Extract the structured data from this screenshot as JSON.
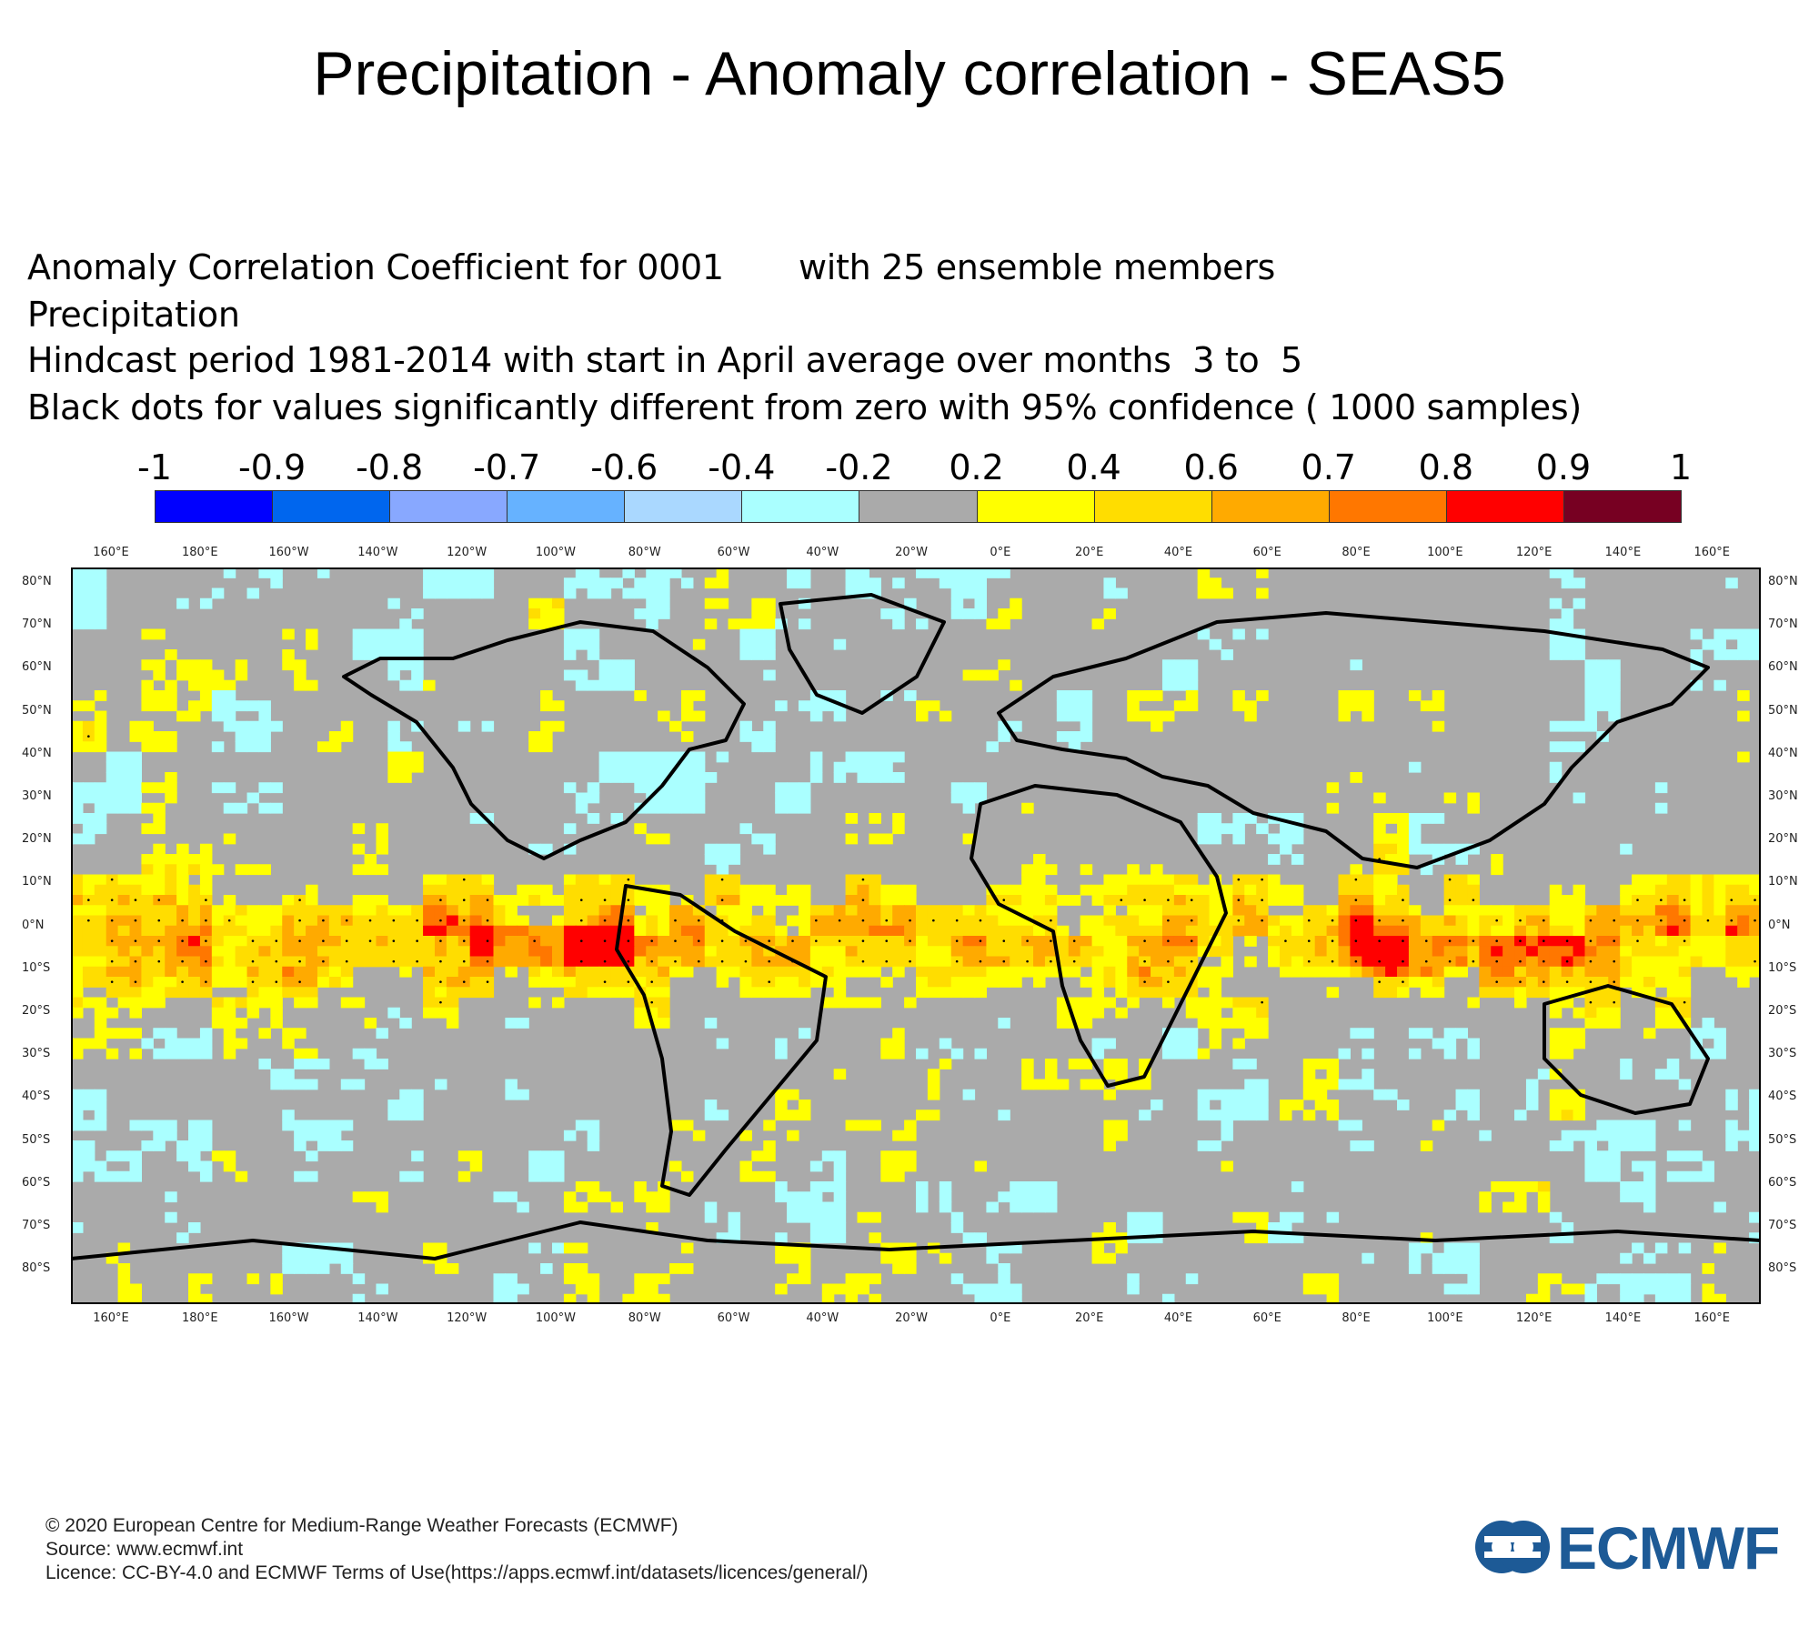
{
  "title": "Precipitation - Anomaly correlation - SEAS5",
  "subtitle": {
    "line1a": "Anomaly Correlation Coefficient for 0001",
    "line1b": "with 25 ensemble members",
    "line2": "Precipitation",
    "line3": "Hindcast period 1981-2014 with start in April average over months  3 to  5",
    "line4": "Black dots for values significantly different from zero with 95% confidence ( 1000 samples)"
  },
  "colorbar": {
    "labels": [
      "-1",
      "-0.9",
      "-0.8",
      "-0.7",
      "-0.6",
      "-0.4",
      "-0.2",
      "0.2",
      "0.4",
      "0.6",
      "0.7",
      "0.8",
      "0.9",
      "1"
    ],
    "colors": [
      "#0000ff",
      "#0066ee",
      "#88a8ff",
      "#66b2ff",
      "#aad8ff",
      "#aaffff",
      "#aaaaaa",
      "#ffff00",
      "#ffdd00",
      "#ffaa00",
      "#ff7700",
      "#ff0000",
      "#770022"
    ]
  },
  "map": {
    "lon_labels": [
      "160°E",
      "180°E",
      "160°W",
      "140°W",
      "120°W",
      "100°W",
      "80°W",
      "60°W",
      "40°W",
      "20°W",
      "0°E",
      "20°E",
      "40°E",
      "60°E",
      "80°E",
      "100°E",
      "120°E",
      "140°E",
      "160°E"
    ],
    "lat_labels": [
      "80°N",
      "70°N",
      "60°N",
      "50°N",
      "40°N",
      "30°N",
      "20°N",
      "10°N",
      "0°N",
      "10°S",
      "20°S",
      "30°S",
      "40°S",
      "50°S",
      "60°S",
      "70°S",
      "80°S"
    ]
  },
  "footer": {
    "line1": "© 2020 European Centre for Medium-Range Weather Forecasts (ECMWF)",
    "line2": "Source: www.ecmwf.int",
    "line3": "Licence: CC-BY-4.0 and ECMWF Terms of Use(https://apps.ecmwf.int/datasets/licences/general/)"
  },
  "logo": {
    "text": "ECMWF",
    "color": "#1d5a96"
  }
}
